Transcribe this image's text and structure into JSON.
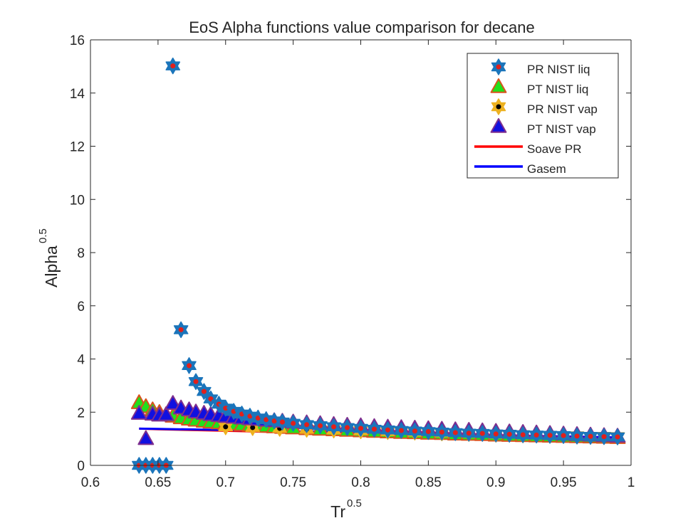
{
  "chart_data": {
    "type": "scatter",
    "title": "EoS Alpha functions value comparison for decane",
    "xlabel": "Tr",
    "xlabel_sup": "0.5",
    "ylabel": "Alpha",
    "ylabel_sup": "0.5",
    "xlim": [
      0.6,
      1.0
    ],
    "ylim": [
      0,
      16
    ],
    "xticks": [
      "0.6",
      "0.65",
      "0.7",
      "0.75",
      "0.8",
      "0.85",
      "0.9",
      "0.95",
      "1"
    ],
    "yticks": [
      "0",
      "2",
      "4",
      "6",
      "8",
      "10",
      "12",
      "14",
      "16"
    ],
    "grid": false,
    "legend_position": "top-right",
    "series": [
      {
        "name": "PR NIST liq",
        "marker": "hexagram",
        "edge_color": "#1b75bb",
        "face_color": "#e0201b",
        "x": [
          0.636,
          0.641,
          0.646,
          0.651,
          0.656,
          0.661,
          0.667,
          0.673,
          0.678,
          0.684,
          0.689,
          0.695,
          0.7,
          0.706,
          0.712,
          0.718,
          0.724,
          0.73,
          0.736,
          0.742,
          0.75,
          0.76,
          0.77,
          0.78,
          0.79,
          0.8,
          0.81,
          0.82,
          0.83,
          0.84,
          0.85,
          0.86,
          0.87,
          0.88,
          0.89,
          0.9,
          0.91,
          0.92,
          0.93,
          0.94,
          0.95,
          0.96,
          0.97,
          0.98,
          0.99
        ],
        "y": [
          0,
          0,
          0,
          0,
          0,
          15.02,
          5.1,
          3.75,
          3.15,
          2.78,
          2.5,
          2.3,
          2.15,
          2.03,
          1.93,
          1.85,
          1.78,
          1.72,
          1.67,
          1.63,
          1.58,
          1.53,
          1.49,
          1.45,
          1.42,
          1.39,
          1.36,
          1.33,
          1.31,
          1.29,
          1.27,
          1.25,
          1.23,
          1.21,
          1.2,
          1.18,
          1.17,
          1.15,
          1.14,
          1.13,
          1.12,
          1.1,
          1.09,
          1.08,
          1.07
        ]
      },
      {
        "name": "PT NIST liq",
        "marker": "triangle",
        "edge_color": "#d9531e",
        "face_color": "#22e01b",
        "x": [
          0.636,
          0.641,
          0.646,
          0.651,
          0.656,
          0.661,
          0.667,
          0.673,
          0.678,
          0.684,
          0.689,
          0.695,
          0.7,
          0.706,
          0.712,
          0.718,
          0.724,
          0.73,
          0.736,
          0.742,
          0.75,
          0.76,
          0.77,
          0.78,
          0.79,
          0.8,
          0.81,
          0.82,
          0.83,
          0.84,
          0.85,
          0.86,
          0.87,
          0.88,
          0.89,
          0.9,
          0.91,
          0.92,
          0.93,
          0.94,
          0.95,
          0.96,
          0.97,
          0.98,
          0.99
        ],
        "y": [
          2.35,
          2.2,
          2.08,
          1.98,
          1.9,
          1.84,
          1.78,
          1.73,
          1.69,
          1.65,
          1.62,
          1.59,
          1.56,
          1.54,
          1.52,
          1.5,
          1.48,
          1.46,
          1.44,
          1.42,
          1.4,
          1.37,
          1.35,
          1.33,
          1.31,
          1.29,
          1.27,
          1.25,
          1.23,
          1.22,
          1.2,
          1.19,
          1.17,
          1.16,
          1.15,
          1.13,
          1.12,
          1.11,
          1.1,
          1.09,
          1.08,
          1.07,
          1.06,
          1.05,
          1.04
        ]
      },
      {
        "name": "PR NIST vap",
        "marker": "hexagram",
        "edge_color": "#edb120",
        "face_color": "#000000",
        "x": [
          0.7,
          0.72,
          0.74,
          0.76,
          0.78,
          0.8,
          0.82,
          0.84,
          0.86,
          0.88,
          0.9,
          0.92,
          0.94,
          0.96,
          0.98,
          0.99
        ],
        "y": [
          1.45,
          1.42,
          1.39,
          1.36,
          1.33,
          1.3,
          1.27,
          1.25,
          1.22,
          1.2,
          1.17,
          1.15,
          1.13,
          1.11,
          1.09,
          1.08
        ]
      },
      {
        "name": "PT NIST vap",
        "marker": "triangle",
        "edge_color": "#7e2f8e",
        "face_color": "#1010e0",
        "x": [
          0.636,
          0.641,
          0.646,
          0.651,
          0.656,
          0.661,
          0.667,
          0.673,
          0.678,
          0.684,
          0.689,
          0.695,
          0.7,
          0.706,
          0.712,
          0.718,
          0.724,
          0.73,
          0.736,
          0.742,
          0.75,
          0.76,
          0.77,
          0.78,
          0.79,
          0.8,
          0.81,
          0.82,
          0.83,
          0.84,
          0.85,
          0.86,
          0.87,
          0.88,
          0.89,
          0.9,
          0.91,
          0.92,
          0.93,
          0.94,
          0.95,
          0.96,
          0.97,
          0.98,
          0.99
        ],
        "y": [
          1.95,
          1.0,
          1.92,
          1.88,
          1.9,
          2.32,
          2.15,
          2.08,
          2.0,
          1.95,
          1.9,
          1.86,
          1.83,
          1.8,
          1.77,
          1.74,
          1.72,
          1.69,
          1.67,
          1.65,
          1.62,
          1.59,
          1.56,
          1.53,
          1.5,
          1.48,
          1.45,
          1.43,
          1.41,
          1.39,
          1.37,
          1.35,
          1.33,
          1.31,
          1.29,
          1.27,
          1.25,
          1.23,
          1.21,
          1.19,
          1.17,
          1.15,
          1.13,
          1.11,
          1.09
        ]
      },
      {
        "name": "Soave PR",
        "marker": "line",
        "line_color": "#ff0000",
        "x": [
          0.636,
          0.65,
          0.7,
          0.75,
          0.8,
          0.85,
          0.9,
          0.95,
          0.99
        ],
        "y": [
          1.38,
          1.36,
          1.3,
          1.24,
          1.19,
          1.14,
          1.1,
          1.06,
          1.02
        ]
      },
      {
        "name": "Gasem",
        "marker": "line",
        "line_color": "#0000ff",
        "x": [
          0.636,
          0.65,
          0.7,
          0.75,
          0.8,
          0.85,
          0.9,
          0.95,
          0.99
        ],
        "y": [
          1.38,
          1.37,
          1.33,
          1.28,
          1.23,
          1.18,
          1.13,
          1.09,
          1.05
        ]
      }
    ]
  }
}
